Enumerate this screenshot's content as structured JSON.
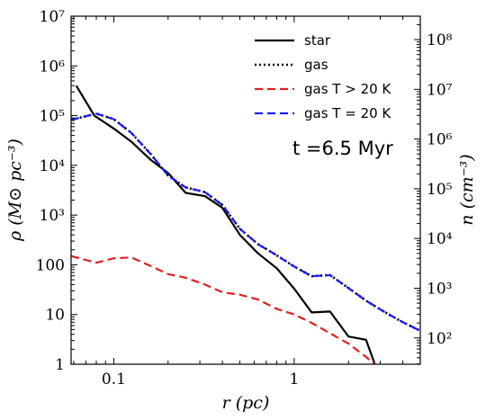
{
  "chart_data": {
    "type": "line",
    "xlabel": "r (pc)",
    "ylabel": "ρ (M⊙ pc⁻³)",
    "y2label": "n (cm⁻³)",
    "x_scale": "log",
    "y_scale": "log",
    "xlim": [
      0.058,
      5.0
    ],
    "ylim": [
      1,
      10000000
    ],
    "y2lim": [
      29.6,
      296000000
    ],
    "x_ticks": [
      {
        "value": 0.1,
        "label": "0.1"
      },
      {
        "value": 1,
        "label": "1"
      }
    ],
    "y_ticks": [
      {
        "value": 1,
        "label": "1"
      },
      {
        "value": 10,
        "label": "10"
      },
      {
        "value": 100,
        "label": "100"
      },
      {
        "value": 1000,
        "label": "10³"
      },
      {
        "value": 10000,
        "label": "10⁴"
      },
      {
        "value": 100000,
        "label": "10⁵"
      },
      {
        "value": 1000000,
        "label": "10⁶"
      },
      {
        "value": 10000000,
        "label": "10⁷"
      }
    ],
    "y2_ticks": [
      {
        "value": 100,
        "label": "10²"
      },
      {
        "value": 1000,
        "label": "10³"
      },
      {
        "value": 10000,
        "label": "10⁴"
      },
      {
        "value": 100000,
        "label": "10⁵"
      },
      {
        "value": 1000000,
        "label": "10⁶"
      },
      {
        "value": 10000000,
        "label": "10⁷"
      },
      {
        "value": 100000000,
        "label": "10⁸"
      }
    ],
    "annotation": "t =6.5 Myr",
    "legend_position": "top-right",
    "grid": false,
    "series": [
      {
        "name": "star",
        "color": "#000000",
        "dash": "solid",
        "x": [
          0.062,
          0.078,
          0.1,
          0.125,
          0.16,
          0.2,
          0.25,
          0.32,
          0.4,
          0.5,
          0.63,
          0.8,
          1.0,
          1.25,
          1.58,
          2.0,
          2.5,
          2.8
        ],
        "y": [
          400000,
          100000,
          55000,
          30000,
          13000,
          7000,
          2800,
          2400,
          1400,
          400,
          170,
          85,
          33,
          11,
          11.5,
          3.6,
          3.1,
          1
        ]
      },
      {
        "name": "gas",
        "color": "#000000",
        "dash": "dotted",
        "x": [
          0.058,
          0.08,
          0.1,
          0.125,
          0.16,
          0.2,
          0.25,
          0.32,
          0.4,
          0.5,
          0.63,
          0.8,
          1.0,
          1.25,
          1.58,
          2.0,
          2.5,
          3.2,
          4.0,
          5.0
        ],
        "y": [
          82000,
          110000,
          85000,
          45000,
          17000,
          6200,
          3600,
          2900,
          1600,
          530,
          260,
          155,
          92,
          59,
          62,
          34,
          19,
          11,
          7,
          4.7
        ]
      },
      {
        "name": "gas T > 20 K",
        "color": "#e02020",
        "dash": "dashed",
        "x": [
          0.058,
          0.08,
          0.1,
          0.125,
          0.16,
          0.2,
          0.25,
          0.32,
          0.4,
          0.5,
          0.63,
          0.8,
          1.0,
          1.25,
          1.58,
          2.0,
          2.5,
          2.8
        ],
        "y": [
          150,
          110,
          135,
          140,
          95,
          65,
          55,
          40,
          28,
          25,
          20,
          13,
          10,
          6.8,
          4.2,
          2.6,
          1.4,
          1
        ]
      },
      {
        "name": "gas T = 20 K",
        "color": "#1a1aff",
        "dash": "dashed",
        "x": [
          0.058,
          0.08,
          0.1,
          0.125,
          0.16,
          0.2,
          0.25,
          0.32,
          0.4,
          0.5,
          0.63,
          0.8,
          1.0,
          1.25,
          1.58,
          2.0,
          2.5,
          3.2,
          4.0,
          5.0
        ],
        "y": [
          82000,
          110000,
          85000,
          45000,
          17000,
          6200,
          3600,
          2900,
          1600,
          530,
          260,
          155,
          92,
          59,
          62,
          34,
          19,
          11,
          7,
          4.7
        ]
      }
    ]
  }
}
